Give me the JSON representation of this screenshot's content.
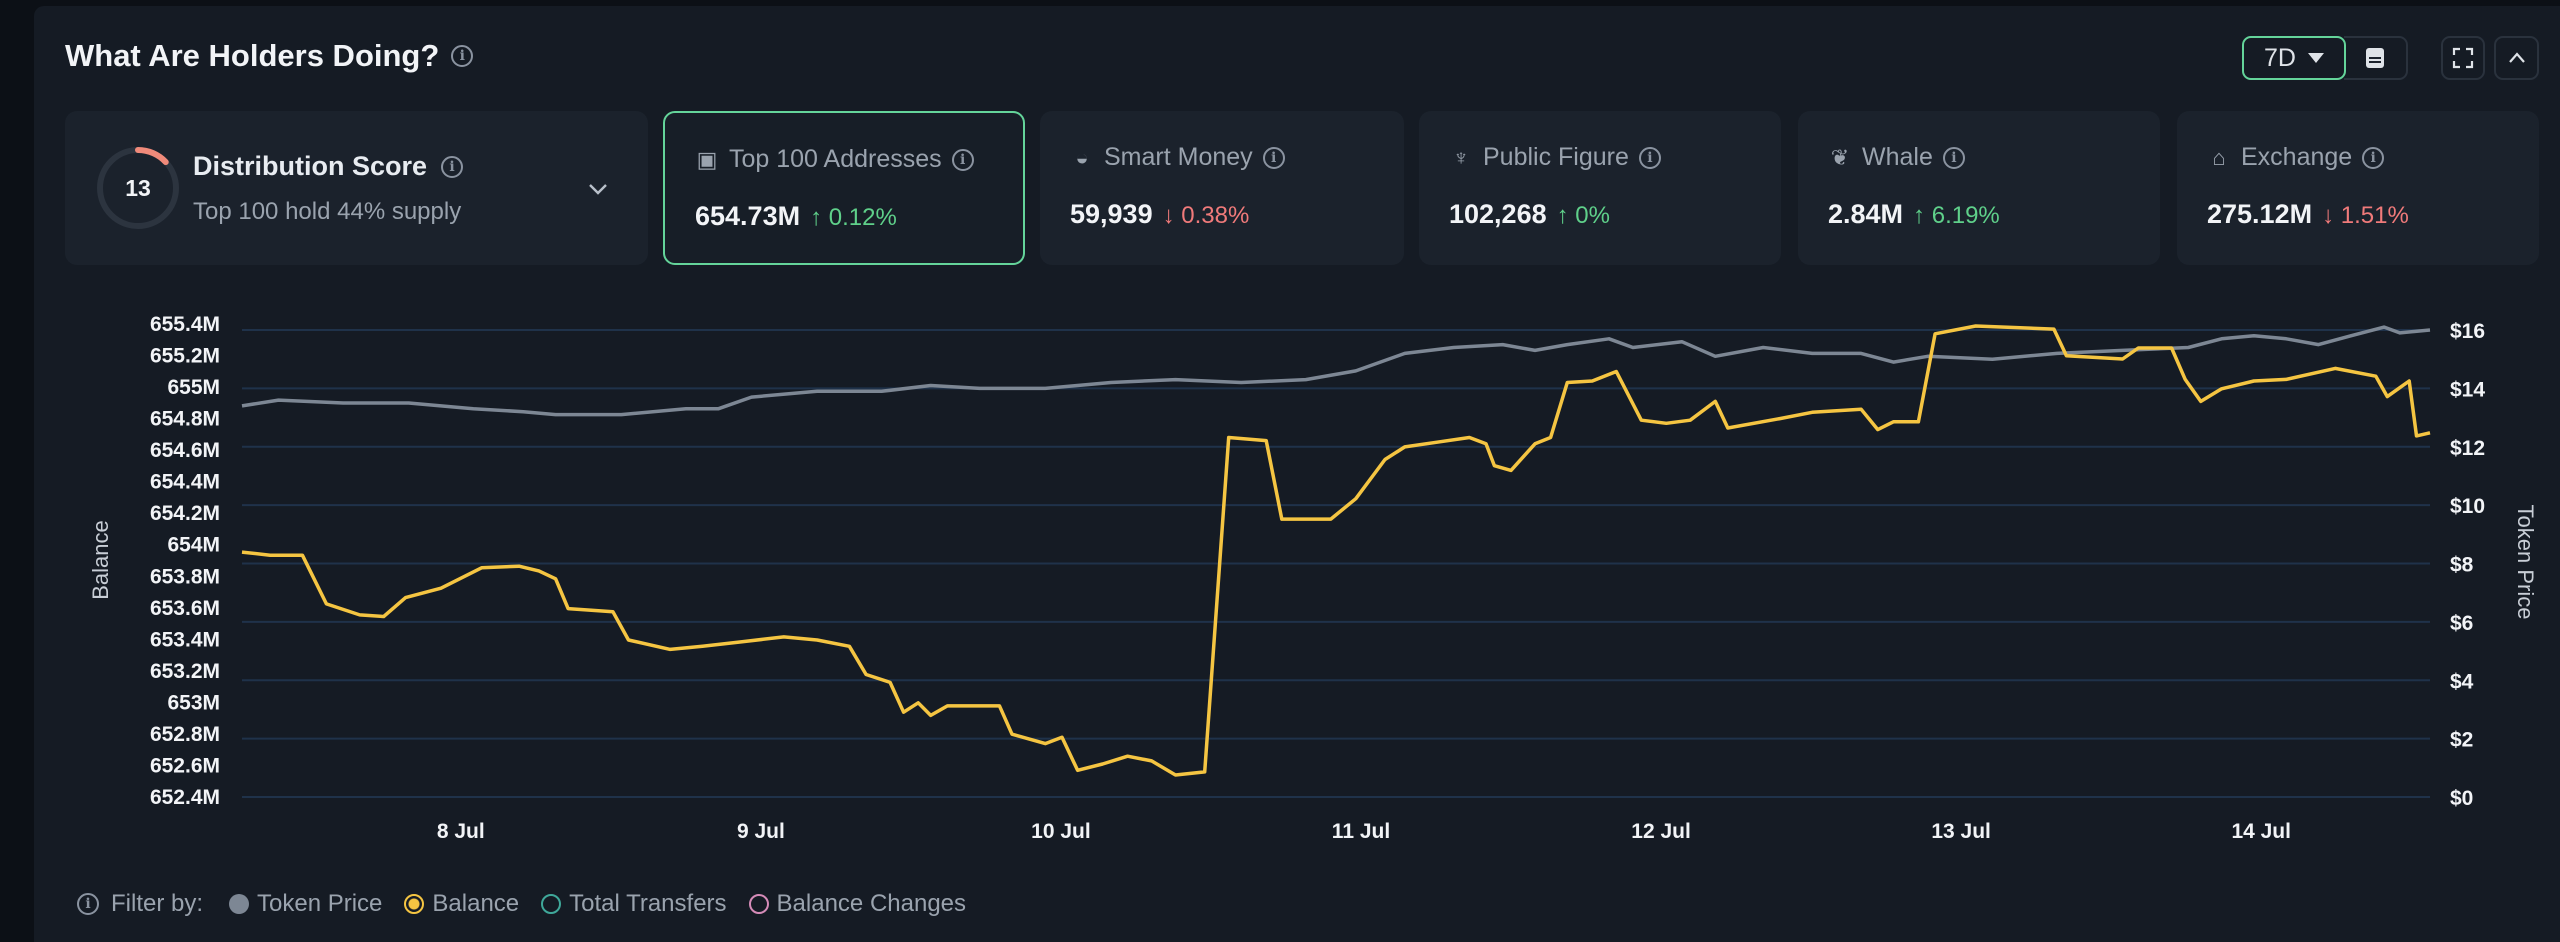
{
  "header": {
    "title": "What Are Holders Doing?",
    "period": "7D"
  },
  "colors": {
    "accent": "#64d49a",
    "up": "#5fd08a",
    "down": "#f07a7a",
    "balance": "#f5c542",
    "price": "#7d8794",
    "transfers": "#3fa89a",
    "changes": "#d58bb8",
    "grid": "#1f324a",
    "score_arc": "#f08a7a"
  },
  "distribution": {
    "score": "13",
    "score_fraction": 0.13,
    "label": "Distribution Score",
    "subtitle": "Top 100 hold 44% supply"
  },
  "cards": [
    {
      "label": "Top 100 Addresses",
      "icon": "money-stack-icon",
      "value": "654.73M",
      "change": "0.12%",
      "dir": "up",
      "selected": true
    },
    {
      "label": "Smart Money",
      "icon": "sunglasses-icon",
      "value": "59,939",
      "change": "0.38%",
      "dir": "down"
    },
    {
      "label": "Public Figure",
      "icon": "public-figure-icon",
      "value": "102,268",
      "change": "0%",
      "dir": "up"
    },
    {
      "label": "Whale",
      "icon": "whale-icon",
      "value": "2.84M",
      "change": "6.19%",
      "dir": "up"
    },
    {
      "label": "Exchange",
      "icon": "bank-icon",
      "value": "275.12M",
      "change": "1.51%",
      "dir": "down"
    }
  ],
  "filter": {
    "label": "Filter by:",
    "items": [
      {
        "label": "Token Price",
        "state": "filled",
        "color": "#7d8794"
      },
      {
        "label": "Balance",
        "state": "selected",
        "color": "#f5c542"
      },
      {
        "label": "Total Transfers",
        "state": "off",
        "color": "#3fa89a"
      },
      {
        "label": "Balance Changes",
        "state": "off",
        "color": "#d58bb8"
      }
    ]
  },
  "chart_data": {
    "type": "line",
    "ylabel_left": "Balance",
    "ylabel_right": "Token Price",
    "ylim_left": [
      652.4,
      655.4
    ],
    "ylim_right": [
      0,
      16
    ],
    "yticks_left": [
      "655.4M",
      "655.2M",
      "655M",
      "654.8M",
      "654.6M",
      "654.4M",
      "654.2M",
      "654M",
      "653.8M",
      "653.6M",
      "653.4M",
      "653.2M",
      "653M",
      "652.8M",
      "652.6M",
      "652.4M"
    ],
    "yticks_right": [
      "$16",
      "$14",
      "$12",
      "$10",
      "$8",
      "$6",
      "$4",
      "$2",
      "$0"
    ],
    "xticks": [
      "8 Jul",
      "9 Jul",
      "10 Jul",
      "11 Jul",
      "12 Jul",
      "13 Jul",
      "14 Jul"
    ],
    "xlim": [
      "7 Jul 06:30",
      "14 Jul 13:30"
    ],
    "grid": "horizontal",
    "series": [
      {
        "name": "Balance",
        "axis": "left",
        "unit": "M",
        "points": [
          [
            "7 Jul 06:30",
            653.96
          ],
          [
            "7 Jul 08:45",
            653.94
          ],
          [
            "7 Jul 11:20",
            653.94
          ],
          [
            "7 Jul 13:15",
            653.63
          ],
          [
            "7 Jul 15:55",
            653.56
          ],
          [
            "7 Jul 17:50",
            653.55
          ],
          [
            "7 Jul 19:35",
            653.67
          ],
          [
            "7 Jul 22:25",
            653.73
          ],
          [
            "8 Jul 01:40",
            653.86
          ],
          [
            "8 Jul 04:40",
            653.87
          ],
          [
            "8 Jul 06:15",
            653.84
          ],
          [
            "8 Jul 07:35",
            653.79
          ],
          [
            "8 Jul 08:35",
            653.6
          ],
          [
            "8 Jul 12:10",
            653.58
          ],
          [
            "8 Jul 13:25",
            653.4
          ],
          [
            "8 Jul 16:45",
            653.34
          ],
          [
            "8 Jul 19:20",
            653.36
          ],
          [
            "8 Jul 22:35",
            653.39
          ],
          [
            "9 Jul 01:50",
            653.42
          ],
          [
            "9 Jul 04:30",
            653.4
          ],
          [
            "9 Jul 07:05",
            653.36
          ],
          [
            "9 Jul 08:25",
            653.18
          ],
          [
            "9 Jul 10:20",
            653.13
          ],
          [
            "9 Jul 11:25",
            652.94
          ],
          [
            "9 Jul 12:35",
            653.0
          ],
          [
            "9 Jul 13:35",
            652.92
          ],
          [
            "9 Jul 14:55",
            652.98
          ],
          [
            "9 Jul 19:05",
            652.98
          ],
          [
            "9 Jul 20:05",
            652.8
          ],
          [
            "9 Jul 22:45",
            652.74
          ],
          [
            "10 Jul 00:05",
            652.78
          ],
          [
            "10 Jul 01:20",
            652.57
          ],
          [
            "10 Jul 03:20",
            652.61
          ],
          [
            "10 Jul 05:20",
            652.66
          ],
          [
            "10 Jul 07:15",
            652.63
          ],
          [
            "10 Jul 09:10",
            652.54
          ],
          [
            "10 Jul 11:30",
            652.56
          ],
          [
            "10 Jul 13:25",
            654.69
          ],
          [
            "10 Jul 16:25",
            654.67
          ],
          [
            "10 Jul 17:40",
            654.17
          ],
          [
            "10 Jul 21:35",
            654.17
          ],
          [
            "10 Jul 23:35",
            654.3
          ],
          [
            "11 Jul 01:55",
            654.55
          ],
          [
            "11 Jul 03:30",
            654.63
          ],
          [
            "11 Jul 06:05",
            654.66
          ],
          [
            "11 Jul 08:40",
            654.69
          ],
          [
            "11 Jul 10:00",
            654.65
          ],
          [
            "11 Jul 10:40",
            654.51
          ],
          [
            "11 Jul 12:00",
            654.48
          ],
          [
            "11 Jul 13:55",
            654.65
          ],
          [
            "11 Jul 15:10",
            654.69
          ],
          [
            "11 Jul 16:30",
            655.04
          ],
          [
            "11 Jul 18:30",
            655.05
          ],
          [
            "11 Jul 20:25",
            655.11
          ],
          [
            "11 Jul 22:25",
            654.8
          ],
          [
            "12 Jul 00:25",
            654.78
          ],
          [
            "12 Jul 02:20",
            654.8
          ],
          [
            "12 Jul 04:20",
            654.92
          ],
          [
            "12 Jul 05:20",
            654.75
          ],
          [
            "12 Jul 09:30",
            654.81
          ],
          [
            "12 Jul 12:05",
            654.85
          ],
          [
            "12 Jul 16:00",
            654.87
          ],
          [
            "12 Jul 17:20",
            654.74
          ],
          [
            "12 Jul 18:35",
            654.79
          ],
          [
            "12 Jul 20:35",
            654.79
          ],
          [
            "12 Jul 21:55",
            655.35
          ],
          [
            "13 Jul 01:10",
            655.4
          ],
          [
            "13 Jul 07:25",
            655.38
          ],
          [
            "13 Jul 08:25",
            655.21
          ],
          [
            "13 Jul 12:55",
            655.19
          ],
          [
            "13 Jul 14:10",
            655.26
          ],
          [
            "13 Jul 16:50",
            655.26
          ],
          [
            "13 Jul 17:55",
            655.06
          ],
          [
            "13 Jul 19:10",
            654.92
          ],
          [
            "13 Jul 20:50",
            655.0
          ],
          [
            "13 Jul 23:25",
            655.05
          ],
          [
            "14 Jul 02:00",
            655.06
          ],
          [
            "14 Jul 05:55",
            655.13
          ],
          [
            "14 Jul 09:10",
            655.08
          ],
          [
            "14 Jul 10:05",
            654.95
          ],
          [
            "14 Jul 11:50",
            655.05
          ],
          [
            "14 Jul 12:25",
            654.7
          ],
          [
            "14 Jul 13:30",
            654.72
          ]
        ]
      },
      {
        "name": "Token Price",
        "axis": "right",
        "unit": "$",
        "points": [
          [
            "7 Jul 06:30",
            13.4
          ],
          [
            "7 Jul 09:25",
            13.6
          ],
          [
            "7 Jul 14:35",
            13.5
          ],
          [
            "7 Jul 19:50",
            13.5
          ],
          [
            "8 Jul 01:00",
            13.3
          ],
          [
            "8 Jul 05:00",
            13.2
          ],
          [
            "8 Jul 07:35",
            13.1
          ],
          [
            "8 Jul 12:50",
            13.1
          ],
          [
            "8 Jul 18:00",
            13.3
          ],
          [
            "8 Jul 20:35",
            13.3
          ],
          [
            "8 Jul 23:15",
            13.7
          ],
          [
            "9 Jul 04:30",
            13.9
          ],
          [
            "9 Jul 09:40",
            13.9
          ],
          [
            "9 Jul 13:35",
            14.1
          ],
          [
            "9 Jul 17:30",
            14.0
          ],
          [
            "9 Jul 22:45",
            14.0
          ],
          [
            "10 Jul 04:00",
            14.2
          ],
          [
            "10 Jul 09:10",
            14.3
          ],
          [
            "10 Jul 14:25",
            14.2
          ],
          [
            "10 Jul 19:35",
            14.3
          ],
          [
            "10 Jul 23:35",
            14.6
          ],
          [
            "11 Jul 03:30",
            15.2
          ],
          [
            "11 Jul 07:25",
            15.4
          ],
          [
            "11 Jul 11:20",
            15.5
          ],
          [
            "11 Jul 13:55",
            15.3
          ],
          [
            "11 Jul 16:30",
            15.5
          ],
          [
            "11 Jul 19:50",
            15.7
          ],
          [
            "11 Jul 21:45",
            15.4
          ],
          [
            "12 Jul 01:40",
            15.6
          ],
          [
            "12 Jul 04:20",
            15.1
          ],
          [
            "12 Jul 08:10",
            15.4
          ],
          [
            "12 Jul 12:05",
            15.2
          ],
          [
            "12 Jul 16:00",
            15.2
          ],
          [
            "12 Jul 18:35",
            14.9
          ],
          [
            "12 Jul 21:20",
            15.1
          ],
          [
            "13 Jul 02:30",
            15.0
          ],
          [
            "13 Jul 07:40",
            15.2
          ],
          [
            "13 Jul 12:55",
            15.3
          ],
          [
            "13 Jul 18:10",
            15.4
          ],
          [
            "13 Jul 20:50",
            15.7
          ],
          [
            "13 Jul 23:25",
            15.8
          ],
          [
            "14 Jul 02:00",
            15.7
          ],
          [
            "14 Jul 04:35",
            15.5
          ],
          [
            "14 Jul 07:10",
            15.8
          ],
          [
            "14 Jul 09:50",
            16.1
          ],
          [
            "14 Jul 11:05",
            15.9
          ],
          [
            "14 Jul 13:30",
            16.0
          ]
        ]
      }
    ]
  }
}
